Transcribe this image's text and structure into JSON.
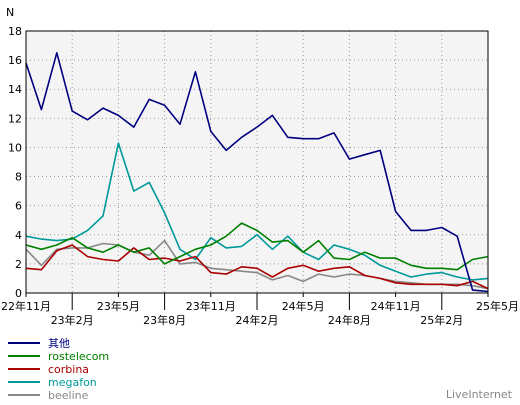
{
  "chart_data": {
    "type": "line",
    "ylabel": "N",
    "ylim": [
      0,
      18
    ],
    "yticks": [
      0,
      2,
      4,
      6,
      8,
      10,
      12,
      14,
      16,
      18
    ],
    "grid": true,
    "x_tick_labels": [
      {
        "i": 0,
        "label": "22年11月",
        "row": 1
      },
      {
        "i": 3,
        "label": "23年2月",
        "row": 2
      },
      {
        "i": 6,
        "label": "23年5月",
        "row": 1
      },
      {
        "i": 9,
        "label": "23年8月",
        "row": 2
      },
      {
        "i": 12,
        "label": "23年11月",
        "row": 1
      },
      {
        "i": 15,
        "label": "24年2月",
        "row": 2
      },
      {
        "i": 18,
        "label": "24年5月",
        "row": 1
      },
      {
        "i": 21,
        "label": "24年8月",
        "row": 2
      },
      {
        "i": 24,
        "label": "24年11月",
        "row": 1
      },
      {
        "i": 27,
        "label": "25年2月",
        "row": 2
      },
      {
        "i": 30,
        "label": "25年5月",
        "row": 1
      }
    ],
    "point_count": 31,
    "series": [
      {
        "name": "其他",
        "color": "#000080",
        "values": [
          15.8,
          12.6,
          16.5,
          12.5,
          11.9,
          12.7,
          12.2,
          11.4,
          13.3,
          12.9,
          11.6,
          15.2,
          11.1,
          9.8,
          10.7,
          11.4,
          12.2,
          10.7,
          10.6,
          10.6,
          11.0,
          9.2,
          9.5,
          9.8,
          5.6,
          4.3,
          4.3,
          4.5,
          3.9,
          0.2,
          0.1
        ]
      },
      {
        "name": "rostelecom",
        "color": "#008000",
        "values": [
          3.3,
          3.0,
          3.3,
          3.8,
          3.1,
          2.8,
          3.3,
          2.8,
          3.1,
          2.0,
          2.5,
          3.0,
          3.3,
          3.9,
          4.8,
          4.3,
          3.5,
          3.6,
          2.8,
          3.6,
          2.4,
          2.3,
          2.8,
          2.4,
          2.4,
          1.9,
          1.7,
          1.7,
          1.6,
          2.3,
          2.5
        ]
      },
      {
        "name": "corbina",
        "color": "#aa0000",
        "values": [
          1.7,
          1.6,
          2.9,
          3.3,
          2.5,
          2.3,
          2.2,
          3.1,
          2.3,
          2.4,
          2.2,
          2.5,
          1.4,
          1.3,
          1.8,
          1.7,
          1.1,
          1.7,
          1.9,
          1.5,
          1.7,
          1.8,
          1.2,
          1.0,
          0.7,
          0.6,
          0.6,
          0.6,
          0.5,
          0.8,
          0.3
        ]
      },
      {
        "name": "megafon",
        "color": "#009999",
        "values": [
          3.9,
          3.7,
          3.6,
          3.7,
          4.3,
          5.3,
          10.3,
          7.0,
          7.6,
          5.5,
          3.0,
          2.3,
          3.8,
          3.1,
          3.2,
          4.0,
          3.0,
          3.9,
          2.8,
          2.3,
          3.3,
          3.0,
          2.6,
          1.9,
          1.5,
          1.1,
          1.3,
          1.4,
          1.1,
          0.9,
          1.0
        ]
      },
      {
        "name": "beeline",
        "color": "#888888",
        "values": [
          3.0,
          1.9,
          3.0,
          3.1,
          3.1,
          3.4,
          3.3,
          2.8,
          2.6,
          3.6,
          2.0,
          2.1,
          1.7,
          1.6,
          1.5,
          1.4,
          0.9,
          1.2,
          0.8,
          1.3,
          1.1,
          1.3,
          1.2,
          1.0,
          0.8,
          0.7,
          0.6,
          0.6,
          0.6,
          0.5,
          0.3
        ]
      }
    ]
  },
  "watermark": "LiveInternet"
}
